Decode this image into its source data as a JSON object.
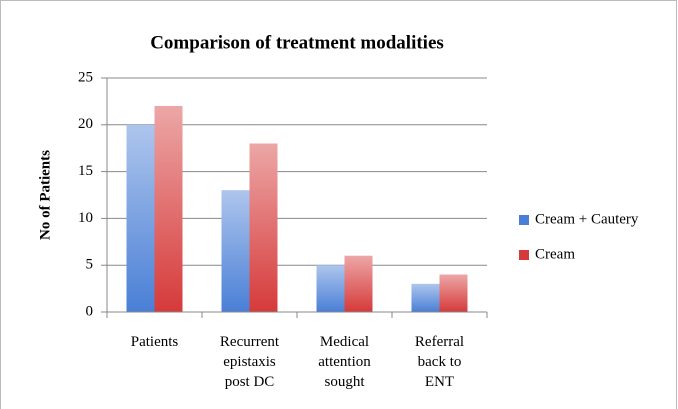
{
  "chart_data": {
    "type": "bar",
    "title": "Comparison of treatment modalities",
    "y_label": "No of Patients",
    "categories": [
      "Patients",
      "Recurrent\nepistaxis\npost DC",
      "Medical\nattention\nsought",
      "Referral\nback to\nENT"
    ],
    "series": [
      {
        "name": "Cream + Cautery",
        "color": "#4a7fd6",
        "values": [
          20,
          13,
          5,
          3
        ]
      },
      {
        "name": "Cream",
        "color": "#d63a3a",
        "values": [
          22,
          18,
          6,
          4
        ]
      }
    ],
    "ylim": [
      0,
      25
    ],
    "yticks": [
      0,
      5,
      10,
      15,
      20,
      25
    ],
    "grid": true,
    "legend": "right"
  }
}
